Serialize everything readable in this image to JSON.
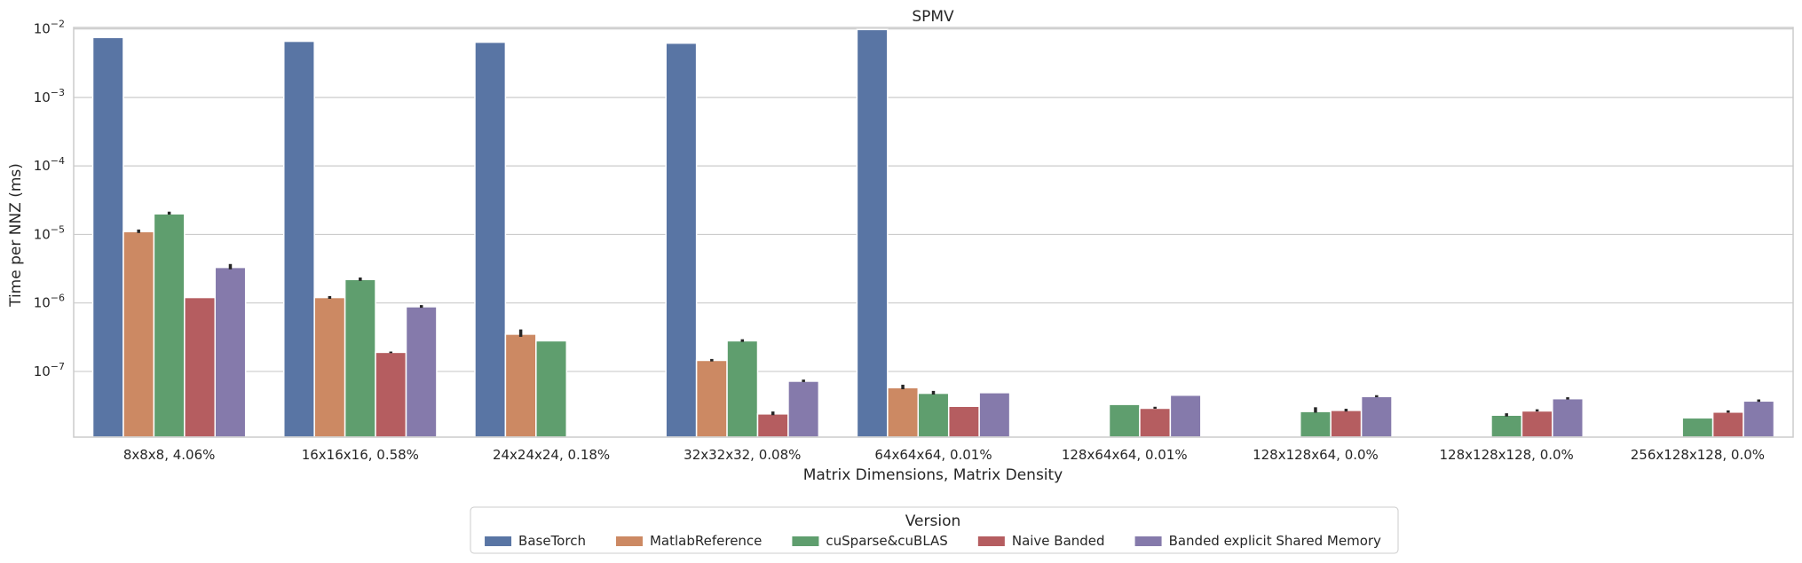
{
  "chart_data": {
    "type": "bar",
    "title": "SPMV",
    "xlabel": "Matrix Dimensions, Matrix Density",
    "ylabel": "Time per NNZ (ms)",
    "yscale": "log",
    "ylim": [
      1.1e-08,
      0.0105
    ],
    "yticks": [
      {
        "value": 1e-07,
        "base": "10",
        "exp": "−7"
      },
      {
        "value": 1e-06,
        "base": "10",
        "exp": "−6"
      },
      {
        "value": 1e-05,
        "base": "10",
        "exp": "−5"
      },
      {
        "value": 0.0001,
        "base": "10",
        "exp": "−4"
      },
      {
        "value": 0.001,
        "base": "10",
        "exp": "−3"
      },
      {
        "value": 0.01,
        "base": "10",
        "exp": "−2"
      }
    ],
    "grid": true,
    "categories": [
      "8x8x8, 4.06%",
      "16x16x16, 0.58%",
      "24x24x24, 0.18%",
      "32x32x32, 0.08%",
      "64x64x64, 0.01%",
      "128x64x64, 0.01%",
      "128x128x64, 0.0%",
      "128x128x128, 0.0%",
      "256x128x128, 0.0%"
    ],
    "legend": {
      "title": "Version",
      "placement": "lower-center"
    },
    "series": [
      {
        "name": "BaseTorch",
        "color": "#5975a4",
        "values": [
          0.0075,
          0.0066,
          0.0064,
          0.0062,
          0.0098,
          null,
          null,
          null,
          null
        ],
        "err": [
          null,
          null,
          null,
          null,
          null,
          null,
          null,
          null,
          null
        ]
      },
      {
        "name": "MatlabReference",
        "color": "#cc8963",
        "values": [
          1.1e-05,
          1.2e-06,
          3.5e-07,
          1.45e-07,
          5.8e-08,
          null,
          null,
          null,
          null
        ],
        "err": [
          [
            1.05e-05,
            1.18e-05
          ],
          [
            1.15e-06,
            1.26e-06
          ],
          [
            3.2e-07,
            4.1e-07
          ],
          [
            1.4e-07,
            1.52e-07
          ],
          [
            5.5e-08,
            6.4e-08
          ],
          null,
          null,
          null,
          null
        ]
      },
      {
        "name": "cuSparse&cuBLAS",
        "color": "#5f9e6e",
        "values": [
          2e-05,
          2.2e-06,
          2.8e-07,
          2.8e-07,
          4.8e-08,
          3.3e-08,
          2.6e-08,
          2.3e-08,
          2.1e-08
        ],
        "err": [
          [
            1.95e-05,
            2.15e-05
          ],
          [
            2.1e-06,
            2.35e-06
          ],
          [
            null,
            null
          ],
          [
            2.7e-07,
            2.95e-07
          ],
          [
            4.6e-08,
            5.2e-08
          ],
          null,
          [
            2.5e-08,
            3e-08
          ],
          [
            2.2e-08,
            2.45e-08
          ],
          null
        ]
      },
      {
        "name": "Naive Banded",
        "color": "#b55d60",
        "values": [
          1.2e-06,
          1.9e-07,
          null,
          2.4e-08,
          3.1e-08,
          2.9e-08,
          2.7e-08,
          2.65e-08,
          2.55e-08
        ],
        "err": [
          null,
          [
            1.85e-07,
            1.95e-07
          ],
          null,
          [
            2.3e-08,
            2.6e-08
          ],
          null,
          [
            2.85e-08,
            3.05e-08
          ],
          [
            2.6e-08,
            2.85e-08
          ],
          [
            2.6e-08,
            2.8e-08
          ],
          [
            2.5e-08,
            2.7e-08
          ]
        ]
      },
      {
        "name": "Banded explicit Shared Memory",
        "color": "#857aab",
        "values": [
          3.3e-06,
          8.8e-07,
          null,
          7.2e-08,
          4.9e-08,
          4.5e-08,
          4.3e-08,
          4e-08,
          3.7e-08
        ],
        "err": [
          [
            3.1e-06,
            3.7e-06
          ],
          [
            8.5e-07,
            9.3e-07
          ],
          null,
          [
            7e-08,
            7.6e-08
          ],
          null,
          null,
          [
            4.2e-08,
            4.5e-08
          ],
          [
            3.9e-08,
            4.2e-08
          ],
          [
            3.6e-08,
            3.9e-08
          ]
        ]
      }
    ]
  }
}
